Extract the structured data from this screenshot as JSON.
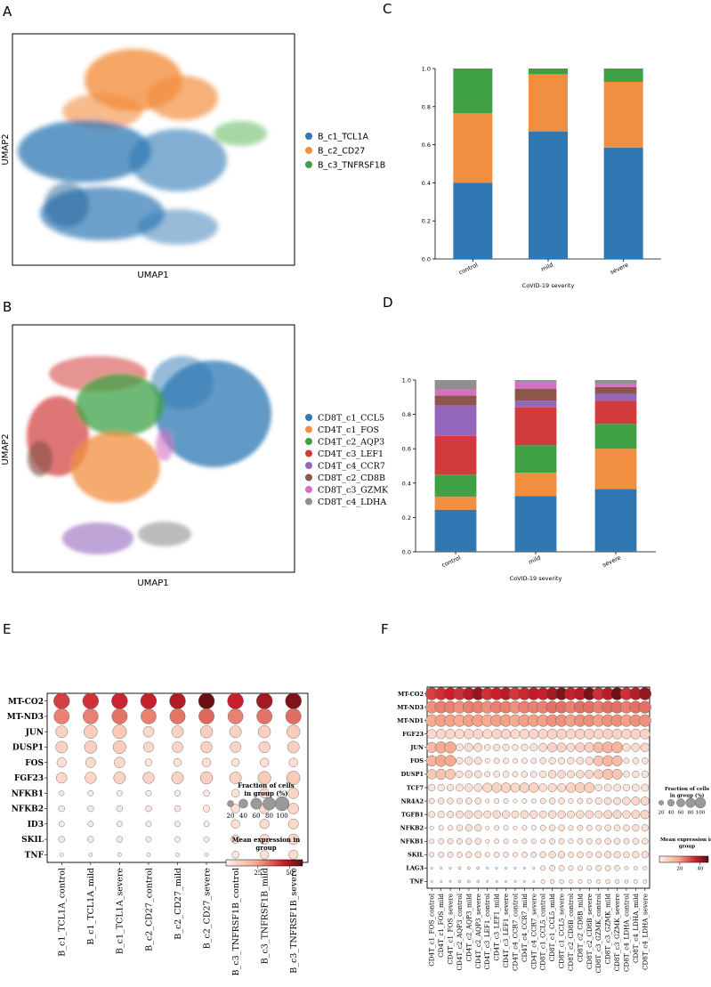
{
  "panelA": {
    "letter": "A",
    "xlabel": "UMAP1",
    "ylabel": "UMAP2",
    "legend": [
      {
        "label": "B_c1_TCL1A",
        "color": "#2f78b4"
      },
      {
        "label": "B_c2_CD27",
        "color": "#f28e3f"
      },
      {
        "label": "B_c3_TNFRSF1B",
        "color": "#3fa146"
      }
    ]
  },
  "panelB": {
    "letter": "B",
    "xlabel": "UMAP1",
    "ylabel": "UMAP2",
    "legend": [
      {
        "label": "CD8T_c1_CCL5",
        "color": "#2f78b4"
      },
      {
        "label": "CD4T_c1_FOS",
        "color": "#f28e3f"
      },
      {
        "label": "CD4T_c2_AQP3",
        "color": "#3fa146"
      },
      {
        "label": "CD4T_c3_LEF1",
        "color": "#d23b3b"
      },
      {
        "label": "CD4T_c4_CCR7",
        "color": "#9467bd"
      },
      {
        "label": "CD8T_c2_CD8B",
        "color": "#8c564b"
      },
      {
        "label": "CD8T_c3_GZMK",
        "color": "#d570c5"
      },
      {
        "label": "CD8T_c4_LDHA",
        "color": "#8f8f8f"
      }
    ]
  },
  "panelC": {
    "letter": "C"
  },
  "panelD": {
    "letter": "D"
  },
  "panelE": {
    "letter": "E"
  },
  "panelF": {
    "letter": "F"
  },
  "chart_data": [
    {
      "id": "C",
      "type": "bar",
      "stacked": true,
      "categories": [
        "control",
        "mild",
        "severe"
      ],
      "xlabel": "CoVID-19 severity",
      "ylabel": "",
      "ylim": [
        0,
        1.0
      ],
      "yticks": [
        "0.0",
        "0.2",
        "0.4",
        "0.6",
        "0.8",
        "1.0"
      ],
      "series": [
        {
          "name": "B_c1_TCL1A",
          "color": "#2f78b4",
          "values": [
            0.4,
            0.67,
            0.585
          ]
        },
        {
          "name": "B_c2_CD27",
          "color": "#f28e3f",
          "values": [
            0.365,
            0.3,
            0.345
          ]
        },
        {
          "name": "B_c3_TNFRSF1B",
          "color": "#3fa146",
          "values": [
            0.235,
            0.03,
            0.07
          ]
        }
      ]
    },
    {
      "id": "D",
      "type": "bar",
      "stacked": true,
      "categories": [
        "control",
        "mild",
        "severe"
      ],
      "xlabel": "CoVID-19 severity",
      "ylabel": "",
      "ylim": [
        0,
        1.0
      ],
      "yticks": [
        "0.0",
        "0.2",
        "0.4",
        "0.6",
        "0.8",
        "1.0"
      ],
      "series": [
        {
          "name": "CD8T_c1_CCL5",
          "color": "#2f78b4",
          "values": [
            0.245,
            0.325,
            0.365
          ]
        },
        {
          "name": "CD4T_c1_FOS",
          "color": "#f28e3f",
          "values": [
            0.075,
            0.135,
            0.235
          ]
        },
        {
          "name": "CD4T_c2_AQP3",
          "color": "#3fa146",
          "values": [
            0.13,
            0.16,
            0.145
          ]
        },
        {
          "name": "CD4T_c3_LEF1",
          "color": "#d23b3b",
          "values": [
            0.225,
            0.22,
            0.135
          ]
        },
        {
          "name": "CD4T_c4_CCR7",
          "color": "#9467bd",
          "values": [
            0.18,
            0.04,
            0.04
          ]
        },
        {
          "name": "CD8T_c2_CD8B",
          "color": "#8c564b",
          "values": [
            0.055,
            0.07,
            0.04
          ]
        },
        {
          "name": "CD8T_c3_GZMK",
          "color": "#d570c5",
          "values": [
            0.035,
            0.04,
            0.015
          ]
        },
        {
          "name": "CD8T_c4_LDHA",
          "color": "#8f8f8f",
          "values": [
            0.055,
            0.01,
            0.025
          ]
        }
      ]
    },
    {
      "id": "E",
      "type": "heatmap",
      "kind": "dotplot",
      "genes": [
        "MT-CO2",
        "MT-ND3",
        "JUN",
        "DUSP1",
        "FOS",
        "FGF23",
        "NFKB1",
        "NFKB2",
        "ID3",
        "SKIL",
        "TNF"
      ],
      "groups": [
        "B_c1_TCL1A_control",
        "B_c1_TCL1A_mild",
        "B_c1_TCL1A_severe",
        "B_c2_CD27_control",
        "B_c2_CD27_mild",
        "B_c2_CD27_severe",
        "B_c3_TNFRSF1B_control",
        "B_c3_TNFRSF1B_mild",
        "B_c3_TNFRSF1B_severe"
      ],
      "fraction": [
        [
          98,
          98,
          99,
          98,
          99,
          99,
          99,
          99,
          99
        ],
        [
          92,
          90,
          93,
          90,
          92,
          92,
          90,
          92,
          93
        ],
        [
          55,
          70,
          75,
          45,
          55,
          60,
          55,
          60,
          70
        ],
        [
          55,
          60,
          65,
          40,
          45,
          50,
          45,
          50,
          55
        ],
        [
          35,
          40,
          45,
          20,
          25,
          30,
          25,
          30,
          30
        ],
        [
          45,
          50,
          55,
          50,
          55,
          60,
          55,
          65,
          70
        ],
        [
          10,
          12,
          12,
          12,
          14,
          15,
          25,
          35,
          45
        ],
        [
          15,
          15,
          15,
          15,
          15,
          18,
          30,
          40,
          45
        ],
        [
          12,
          12,
          12,
          12,
          12,
          12,
          30,
          35,
          40
        ],
        [
          15,
          15,
          15,
          12,
          12,
          12,
          30,
          40,
          45
        ],
        [
          5,
          5,
          5,
          5,
          5,
          5,
          20,
          30,
          35
        ]
      ],
      "mean_expression": [
        [
          40,
          42,
          44,
          45,
          48,
          58,
          45,
          50,
          55
        ],
        [
          30,
          30,
          32,
          30,
          32,
          34,
          30,
          32,
          33
        ],
        [
          10,
          12,
          13,
          8,
          10,
          11,
          10,
          11,
          12
        ],
        [
          10,
          11,
          12,
          8,
          9,
          10,
          9,
          10,
          11
        ],
        [
          6,
          7,
          8,
          4,
          5,
          6,
          5,
          6,
          6
        ],
        [
          8,
          9,
          10,
          9,
          10,
          11,
          10,
          12,
          13
        ],
        [
          2,
          2,
          2,
          2,
          2,
          2,
          5,
          7,
          9
        ],
        [
          3,
          3,
          3,
          3,
          3,
          3,
          6,
          8,
          9
        ],
        [
          2,
          2,
          2,
          2,
          2,
          2,
          6,
          7,
          8
        ],
        [
          3,
          3,
          3,
          2,
          2,
          2,
          6,
          8,
          9
        ],
        [
          1,
          1,
          1,
          1,
          1,
          1,
          4,
          6,
          7
        ]
      ],
      "size_legend_title": "Fraction of cells\nin group (%)",
      "size_legend_values": [
        20,
        40,
        60,
        80,
        100
      ],
      "color_legend_title": "Mean expression in\ngroup",
      "color_ticks": [
        25,
        50
      ],
      "color_range": [
        0,
        60
      ]
    },
    {
      "id": "F",
      "type": "heatmap",
      "kind": "dotplot",
      "genes": [
        "MT-CO2",
        "MT-ND3",
        "MT-ND1",
        "FGF23",
        "JUN",
        "FOS",
        "DUSP1",
        "TCF7",
        "NR4A2",
        "TGFB1",
        "NFKB2",
        "NFKB1",
        "SKIL",
        "LAG3",
        "TNF"
      ],
      "groups": [
        "CD4T_c1_FOS_control",
        "CD4T_c1_FOS_mild",
        "CD4T_c1_FOS_severe",
        "CD4T_c2_AQP3_control",
        "CD4T_c2_AQP3_mild",
        "CD4T_c2_AQP3_severe",
        "CD4T_c3_LEF1_control",
        "CD4T_c3_LEF1_mild",
        "CD4T_c3_LEF1_severe",
        "CD4T_c4_CCR7_control",
        "CD4T_c4_CCR7_mild",
        "CD4T_c4_CCR7_severe",
        "CD8T_c1_CCL5_control",
        "CD8T_c1_CCL5_mild",
        "CD8T_c1_CCL5_severe",
        "CD8T_c2_CD8B_control",
        "CD8T_c2_CD8B_mild",
        "CD8T_c2_CD8B_severe",
        "CD8T_c3_GZMK_control",
        "CD8T_c3_GZMK_mild",
        "CD8T_c3_GZMK_severe",
        "CD8T_c4_LDHA_control",
        "CD8T_c4_LDHA_mild",
        "CD8T_c4_LDHA_severe"
      ],
      "fraction": [
        [
          99,
          99,
          99,
          99,
          99,
          99,
          99,
          99,
          99,
          99,
          99,
          99,
          99,
          99,
          99,
          99,
          99,
          99,
          99,
          99,
          99,
          99,
          99,
          99
        ],
        [
          95,
          95,
          95,
          95,
          95,
          95,
          95,
          95,
          95,
          95,
          95,
          95,
          95,
          95,
          95,
          95,
          95,
          95,
          95,
          95,
          95,
          95,
          95,
          95
        ],
        [
          92,
          92,
          92,
          92,
          92,
          92,
          92,
          92,
          92,
          92,
          92,
          92,
          92,
          92,
          92,
          92,
          92,
          92,
          92,
          92,
          92,
          92,
          92,
          92
        ],
        [
          55,
          60,
          60,
          55,
          60,
          60,
          55,
          60,
          60,
          55,
          60,
          60,
          60,
          65,
          65,
          60,
          65,
          65,
          60,
          65,
          65,
          60,
          65,
          65
        ],
        [
          70,
          85,
          85,
          35,
          45,
          45,
          25,
          30,
          30,
          25,
          30,
          35,
          45,
          55,
          55,
          45,
          55,
          60,
          70,
          80,
          80,
          40,
          45,
          50
        ],
        [
          75,
          85,
          80,
          30,
          40,
          35,
          15,
          20,
          20,
          15,
          20,
          20,
          25,
          30,
          30,
          30,
          35,
          40,
          65,
          75,
          70,
          20,
          25,
          25
        ],
        [
          60,
          70,
          65,
          30,
          35,
          35,
          20,
          25,
          25,
          20,
          25,
          25,
          30,
          40,
          40,
          35,
          40,
          45,
          55,
          70,
          65,
          25,
          30,
          30
        ],
        [
          30,
          30,
          30,
          35,
          40,
          40,
          55,
          60,
          60,
          55,
          60,
          60,
          40,
          45,
          45,
          60,
          65,
          65,
          30,
          35,
          35,
          30,
          35,
          35
        ],
        [
          20,
          25,
          25,
          20,
          25,
          25,
          10,
          15,
          15,
          10,
          15,
          15,
          20,
          25,
          25,
          15,
          20,
          20,
          30,
          35,
          35,
          40,
          45,
          45
        ],
        [
          25,
          30,
          30,
          35,
          40,
          40,
          35,
          40,
          40,
          35,
          40,
          40,
          35,
          40,
          40,
          35,
          40,
          40,
          35,
          45,
          45,
          40,
          45,
          50
        ],
        [
          10,
          15,
          15,
          25,
          30,
          30,
          10,
          15,
          15,
          10,
          15,
          15,
          20,
          25,
          25,
          15,
          20,
          20,
          20,
          25,
          25,
          25,
          30,
          30
        ],
        [
          15,
          20,
          20,
          20,
          25,
          25,
          10,
          15,
          15,
          10,
          15,
          15,
          15,
          20,
          20,
          15,
          20,
          20,
          20,
          25,
          25,
          20,
          25,
          25
        ],
        [
          15,
          20,
          20,
          20,
          25,
          25,
          15,
          20,
          20,
          15,
          20,
          20,
          25,
          30,
          30,
          20,
          25,
          25,
          25,
          30,
          30,
          25,
          30,
          30
        ],
        [
          3,
          3,
          3,
          5,
          5,
          5,
          3,
          3,
          3,
          3,
          3,
          3,
          15,
          20,
          20,
          15,
          15,
          15,
          20,
          20,
          20,
          10,
          10,
          10
        ],
        [
          3,
          3,
          3,
          5,
          5,
          5,
          3,
          3,
          3,
          3,
          3,
          3,
          10,
          12,
          12,
          8,
          10,
          10,
          10,
          12,
          12,
          8,
          10,
          10
        ]
      ],
      "mean_expression": [
        [
          32,
          34,
          36,
          34,
          38,
          42,
          34,
          36,
          38,
          33,
          35,
          37,
          36,
          40,
          44,
          36,
          38,
          45,
          34,
          38,
          46,
          34,
          38,
          42
        ],
        [
          22,
          24,
          24,
          22,
          24,
          24,
          22,
          24,
          24,
          22,
          24,
          24,
          24,
          26,
          26,
          24,
          26,
          26,
          24,
          26,
          26,
          24,
          26,
          26
        ],
        [
          18,
          20,
          20,
          18,
          20,
          20,
          18,
          20,
          20,
          18,
          20,
          20,
          20,
          22,
          22,
          20,
          22,
          22,
          20,
          22,
          22,
          20,
          22,
          22
        ],
        [
          6,
          7,
          7,
          6,
          7,
          7,
          6,
          7,
          7,
          6,
          7,
          7,
          7,
          8,
          8,
          7,
          8,
          8,
          7,
          8,
          8,
          7,
          8,
          8
        ],
        [
          14,
          18,
          18,
          4,
          6,
          6,
          3,
          4,
          4,
          3,
          4,
          4,
          6,
          8,
          8,
          6,
          8,
          9,
          14,
          16,
          16,
          5,
          6,
          7
        ],
        [
          16,
          19,
          18,
          4,
          5,
          5,
          2,
          3,
          3,
          2,
          3,
          3,
          3,
          4,
          4,
          4,
          5,
          6,
          12,
          15,
          14,
          3,
          4,
          4
        ],
        [
          10,
          12,
          11,
          4,
          5,
          5,
          3,
          3,
          3,
          3,
          3,
          3,
          4,
          6,
          6,
          5,
          6,
          7,
          9,
          12,
          11,
          3,
          4,
          4
        ],
        [
          3,
          3,
          3,
          4,
          5,
          5,
          7,
          8,
          8,
          7,
          8,
          8,
          5,
          6,
          6,
          8,
          9,
          9,
          3,
          4,
          4,
          3,
          4,
          4
        ],
        [
          3,
          4,
          4,
          3,
          4,
          4,
          1,
          2,
          2,
          1,
          2,
          2,
          3,
          4,
          4,
          2,
          3,
          3,
          4,
          5,
          5,
          6,
          7,
          7
        ],
        [
          3,
          4,
          4,
          5,
          6,
          6,
          5,
          6,
          6,
          5,
          6,
          6,
          5,
          6,
          6,
          5,
          6,
          6,
          5,
          7,
          7,
          6,
          7,
          8
        ],
        [
          1,
          2,
          2,
          4,
          5,
          5,
          1,
          2,
          2,
          1,
          2,
          2,
          3,
          4,
          4,
          2,
          3,
          3,
          3,
          4,
          4,
          4,
          5,
          5
        ],
        [
          2,
          3,
          3,
          3,
          4,
          4,
          1,
          2,
          2,
          1,
          2,
          2,
          2,
          3,
          3,
          2,
          3,
          3,
          3,
          4,
          4,
          3,
          4,
          4
        ],
        [
          2,
          3,
          3,
          3,
          4,
          4,
          2,
          3,
          3,
          2,
          3,
          3,
          4,
          5,
          5,
          3,
          4,
          4,
          4,
          5,
          5,
          4,
          5,
          5
        ],
        [
          1,
          1,
          1,
          1,
          1,
          1,
          1,
          1,
          1,
          1,
          1,
          1,
          2,
          3,
          3,
          2,
          2,
          2,
          3,
          3,
          3,
          1,
          1,
          1
        ],
        [
          1,
          1,
          1,
          1,
          1,
          1,
          1,
          1,
          1,
          1,
          1,
          1,
          1,
          2,
          2,
          1,
          1,
          1,
          1,
          2,
          2,
          1,
          1,
          1
        ]
      ],
      "size_legend_title": "Fraction of cells\nin group (%)",
      "size_legend_values": [
        20,
        40,
        60,
        80,
        100
      ],
      "color_legend_title": "Mean expression in\ngroup",
      "color_ticks": [
        20,
        40
      ],
      "color_range": [
        0,
        48
      ]
    }
  ]
}
